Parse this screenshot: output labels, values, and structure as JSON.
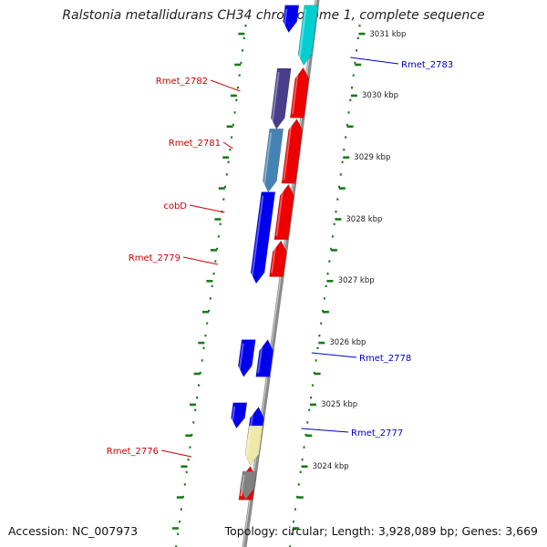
{
  "title": "Ralstonia metallidurans CH34 chromosome 1, complete sequence",
  "accession": "Accession: NC_007973",
  "topology": "Topology: circular; Length: 3,928,089 bp; Genes: 3,669",
  "colors": {
    "background": "#ffffff",
    "backbone": "#8a8a8a",
    "ticks": "#1a7a1a",
    "left_label": "#cc0000",
    "right_label": "#0000cc"
  },
  "scale_labels": [
    "3031 kbp",
    "3030 kbp",
    "3029 kbp",
    "3028 kbp",
    "3027 kbp",
    "3026 kbp",
    "3025 kbp",
    "3024 kbp"
  ],
  "gene_labels_left": [
    "Rmet_2782",
    "Rmet_2781",
    "cobD",
    "Rmet_2779",
    "Rmet_2776"
  ],
  "gene_labels_right": [
    "Rmet_2783",
    "Rmet_2778",
    "Rmet_2777"
  ],
  "features": [
    {
      "lane": "outer",
      "start": 3024.62,
      "end": 3025.03,
      "direction": "reverse",
      "color": "#0000ee"
    },
    {
      "lane": "outer",
      "start": 3025.45,
      "end": 3026.05,
      "direction": "reverse",
      "color": "#0000ee"
    },
    {
      "lane": "outer",
      "start": 3026.96,
      "end": 3028.44,
      "direction": "reverse",
      "color": "#0000ee"
    },
    {
      "lane": "outer",
      "start": 3028.44,
      "end": 3029.46,
      "direction": "reverse",
      "color": "#4682b4"
    },
    {
      "lane": "outer",
      "start": 3029.46,
      "end": 3030.44,
      "direction": "reverse",
      "color": "#483d8b"
    },
    {
      "lane": "outer",
      "start": 3031.02,
      "end": 3031.46,
      "direction": "reverse",
      "color": "#0000ee"
    },
    {
      "lane": "inner",
      "start": 3023.46,
      "end": 3024.0,
      "direction": "forward",
      "color": "#ee0000"
    },
    {
      "lane": "inner",
      "start": 3024.46,
      "end": 3024.96,
      "direction": "forward",
      "color": "#0000ee"
    },
    {
      "lane": "inner",
      "start": 3025.45,
      "end": 3026.05,
      "direction": "forward",
      "color": "#0000ee"
    },
    {
      "lane": "inner",
      "start": 3024.02,
      "end": 3024.66,
      "direction": "reverse",
      "color": "#eee8aa"
    },
    {
      "lane": "inner",
      "start": 3027.07,
      "end": 3027.65,
      "direction": "forward",
      "color": "#ee0000"
    },
    {
      "lane": "inner",
      "start": 3027.67,
      "end": 3028.56,
      "direction": "forward",
      "color": "#ee0000"
    },
    {
      "lane": "inner",
      "start": 3028.58,
      "end": 3029.62,
      "direction": "forward",
      "color": "#ee0000"
    },
    {
      "lane": "inner",
      "start": 3029.64,
      "end": 3030.45,
      "direction": "forward",
      "color": "#ee0000"
    },
    {
      "lane": "inner",
      "start": 3030.49,
      "end": 3031.46,
      "direction": "reverse",
      "color": "#00ced1"
    },
    {
      "lane": "inner",
      "start": 3023.46,
      "end": 3023.92,
      "direction": "reverse",
      "color": "#808080"
    }
  ]
}
